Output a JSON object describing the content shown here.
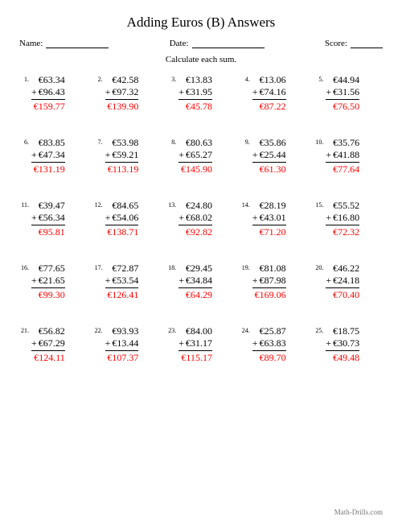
{
  "title": "Adding Euros (B) Answers",
  "meta": {
    "name_label": "Name:",
    "date_label": "Date:",
    "score_label": "Score:"
  },
  "instruction": "Calculate each sum.",
  "currency": "€",
  "style": {
    "answer_color": "#ff0000",
    "text_color": "#000000",
    "footer_color": "#777777",
    "background_color": "#ffffff",
    "title_fontsize": 17,
    "body_fontsize": 12,
    "num_fontsize": 8,
    "meta_fontsize": 11,
    "columns": 5,
    "rows": 5
  },
  "problems": [
    {
      "n": "1.",
      "a": "€63.34",
      "b": "€96.43",
      "ans": "€159.77"
    },
    {
      "n": "2.",
      "a": "€42.58",
      "b": "€97.32",
      "ans": "€139.90"
    },
    {
      "n": "3.",
      "a": "€13.83",
      "b": "€31.95",
      "ans": "€45.78"
    },
    {
      "n": "4.",
      "a": "€13.06",
      "b": "€74.16",
      "ans": "€87.22"
    },
    {
      "n": "5.",
      "a": "€44.94",
      "b": "€31.56",
      "ans": "€76.50"
    },
    {
      "n": "6.",
      "a": "€83.85",
      "b": "€47.34",
      "ans": "€131.19"
    },
    {
      "n": "7.",
      "a": "€53.98",
      "b": "€59.21",
      "ans": "€113.19"
    },
    {
      "n": "8.",
      "a": "€80.63",
      "b": "€65.27",
      "ans": "€145.90"
    },
    {
      "n": "9.",
      "a": "€35.86",
      "b": "€25.44",
      "ans": "€61.30"
    },
    {
      "n": "10.",
      "a": "€35.76",
      "b": "€41.88",
      "ans": "€77.64"
    },
    {
      "n": "11.",
      "a": "€39.47",
      "b": "€56.34",
      "ans": "€95.81"
    },
    {
      "n": "12.",
      "a": "€84.65",
      "b": "€54.06",
      "ans": "€138.71"
    },
    {
      "n": "13.",
      "a": "€24.80",
      "b": "€68.02",
      "ans": "€92.82"
    },
    {
      "n": "14.",
      "a": "€28.19",
      "b": "€43.01",
      "ans": "€71.20"
    },
    {
      "n": "15.",
      "a": "€55.52",
      "b": "€16.80",
      "ans": "€72.32"
    },
    {
      "n": "16.",
      "a": "€77.65",
      "b": "€21.65",
      "ans": "€99.30"
    },
    {
      "n": "17.",
      "a": "€72.87",
      "b": "€53.54",
      "ans": "€126.41"
    },
    {
      "n": "18.",
      "a": "€29.45",
      "b": "€34.84",
      "ans": "€64.29"
    },
    {
      "n": "19.",
      "a": "€81.08",
      "b": "€87.98",
      "ans": "€169.06"
    },
    {
      "n": "20.",
      "a": "€46.22",
      "b": "€24.18",
      "ans": "€70.40"
    },
    {
      "n": "21.",
      "a": "€56.82",
      "b": "€67.29",
      "ans": "€124.11"
    },
    {
      "n": "22.",
      "a": "€93.93",
      "b": "€13.44",
      "ans": "€107.37"
    },
    {
      "n": "23.",
      "a": "€84.00",
      "b": "€31.17",
      "ans": "€115.17"
    },
    {
      "n": "24.",
      "a": "€25.87",
      "b": "€63.83",
      "ans": "€89.70"
    },
    {
      "n": "25.",
      "a": "€18.75",
      "b": "€30.73",
      "ans": "€49.48"
    }
  ],
  "plus": "+",
  "footer": "Math-Drills.com"
}
